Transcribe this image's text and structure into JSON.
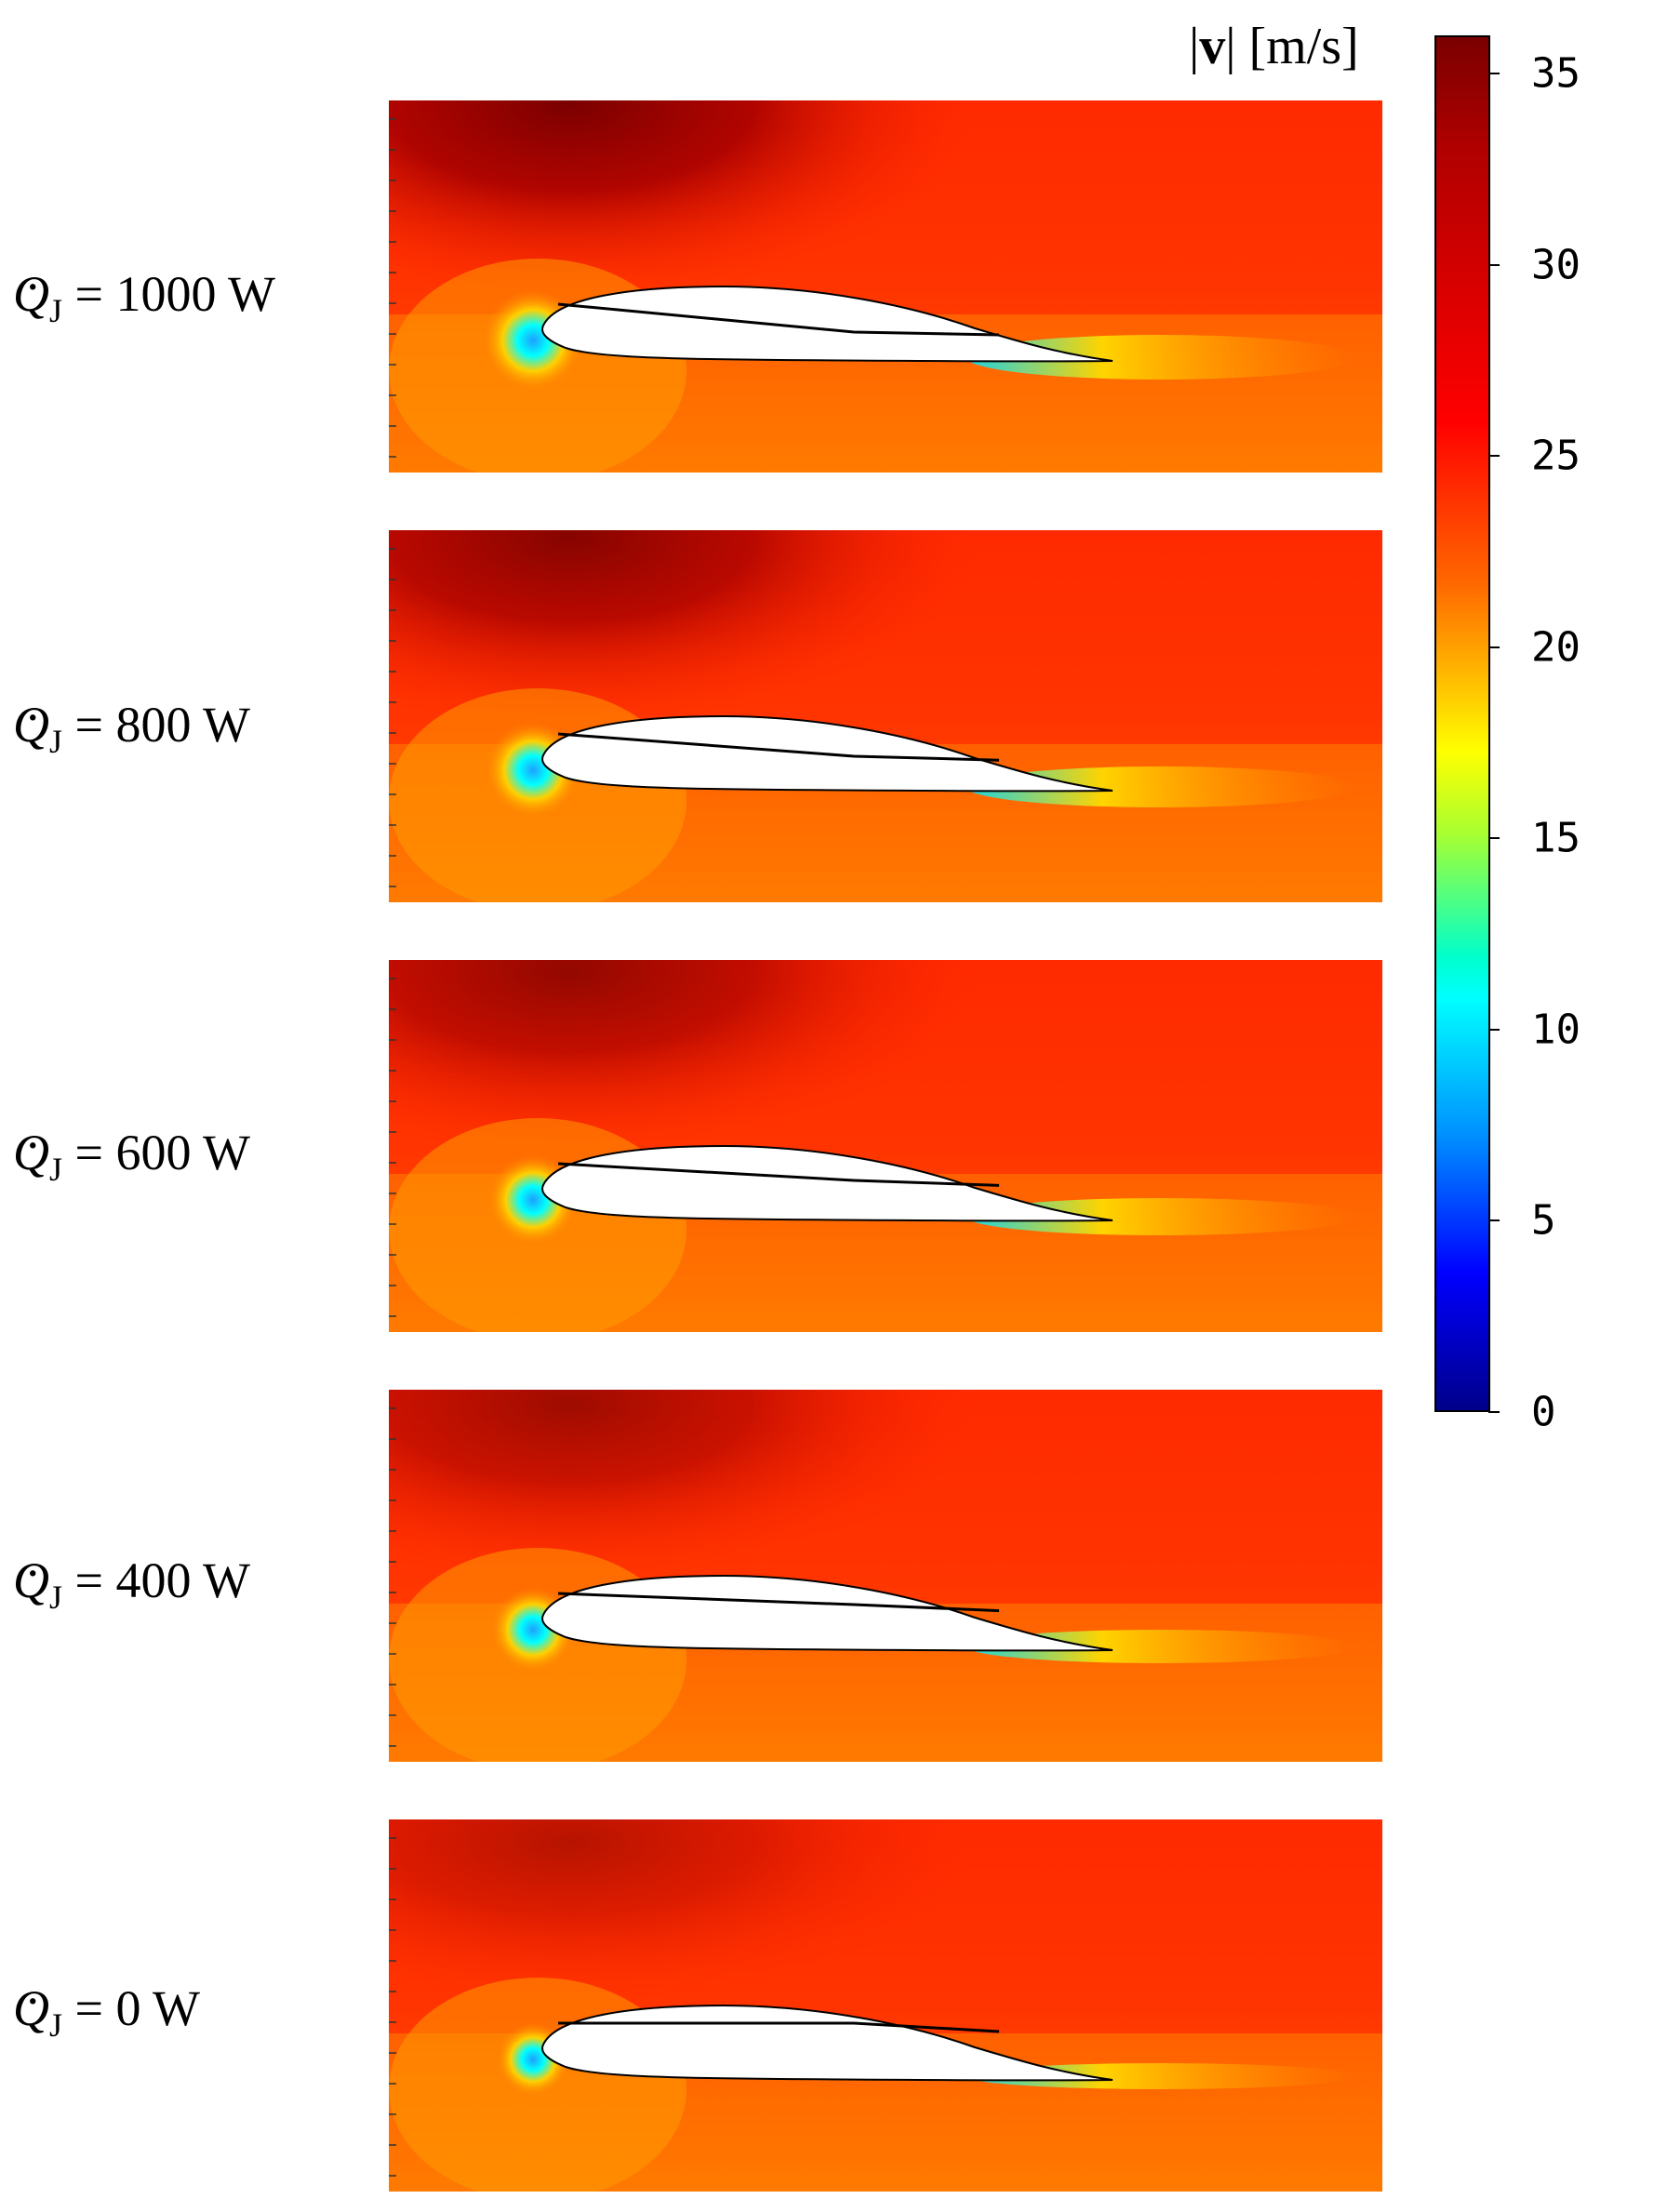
{
  "colorbar": {
    "title_symbol": "v",
    "title_unit": "[m/s]",
    "ticks": [
      "35",
      "30",
      "25",
      "20",
      "15",
      "10",
      "5",
      "0"
    ],
    "tick_values": [
      35,
      30,
      25,
      20,
      15,
      10,
      5,
      0
    ],
    "range": [
      0,
      36
    ],
    "colormap": "jet-like (dark blue → cyan → green → yellow → orange → red → dark red)"
  },
  "panels": [
    {
      "symbol": "Q",
      "subscript": "J",
      "value_text": "= 1000 W",
      "power_W": 1000
    },
    {
      "symbol": "Q",
      "subscript": "J",
      "value_text": "= 800 W",
      "power_W": 800
    },
    {
      "symbol": "Q",
      "subscript": "J",
      "value_text": "= 600 W",
      "power_W": 600
    },
    {
      "symbol": "Q",
      "subscript": "J",
      "value_text": "= 400 W",
      "power_W": 400
    },
    {
      "symbol": "Q",
      "subscript": "J",
      "value_text": "= 0 W",
      "power_W": 0
    }
  ]
}
